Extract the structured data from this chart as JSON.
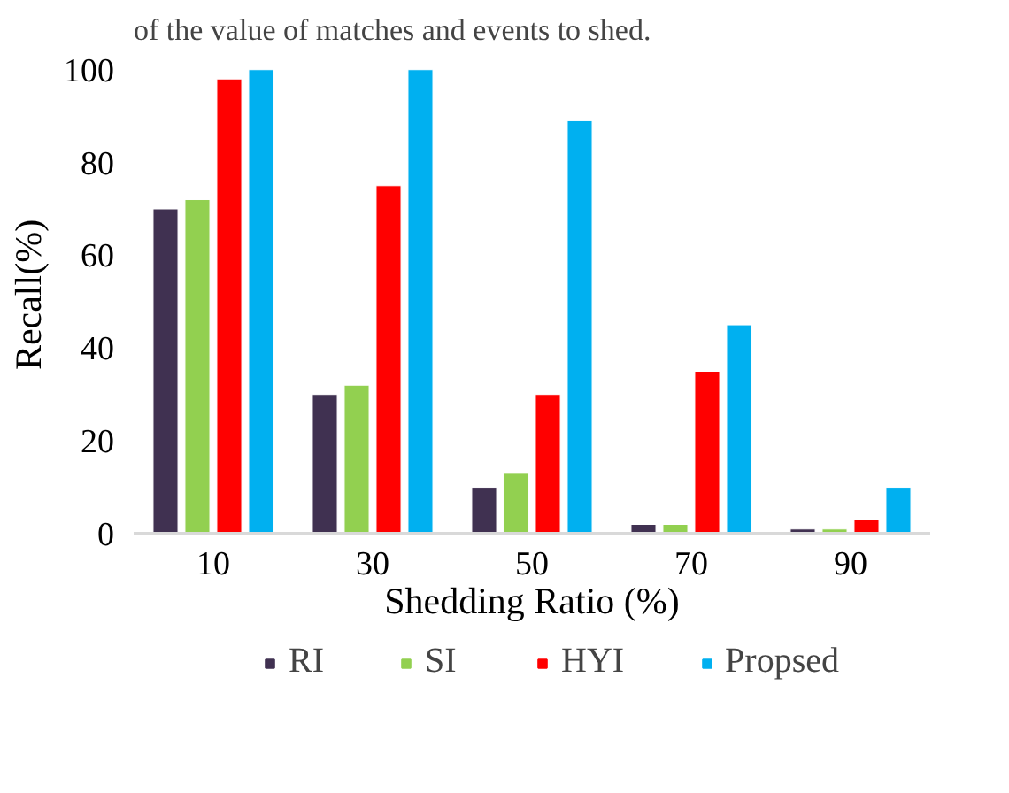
{
  "chart_data": {
    "type": "bar",
    "annotations": [
      "of the value of matches and events to shed."
    ],
    "xlabel": "Shedding Ratio (%)",
    "ylabel": "Recall(%)",
    "categories": [
      "10",
      "30",
      "50",
      "70",
      "90"
    ],
    "series": [
      {
        "name": "RI",
        "color": "#403151",
        "values": [
          70,
          30,
          10,
          2,
          1
        ]
      },
      {
        "name": "SI",
        "color": "#92d050",
        "values": [
          72,
          32,
          13,
          2,
          1
        ]
      },
      {
        "name": "HYI",
        "color": "#ff0000",
        "values": [
          98,
          75,
          30,
          35,
          3
        ]
      },
      {
        "name": "Propsed",
        "color": "#00b0f0",
        "values": [
          100,
          100,
          89,
          45,
          10
        ]
      }
    ],
    "ylim": [
      0,
      100
    ],
    "yticks": [
      0,
      20,
      40,
      60,
      80,
      100
    ],
    "grid": false,
    "legend": "bottom"
  }
}
